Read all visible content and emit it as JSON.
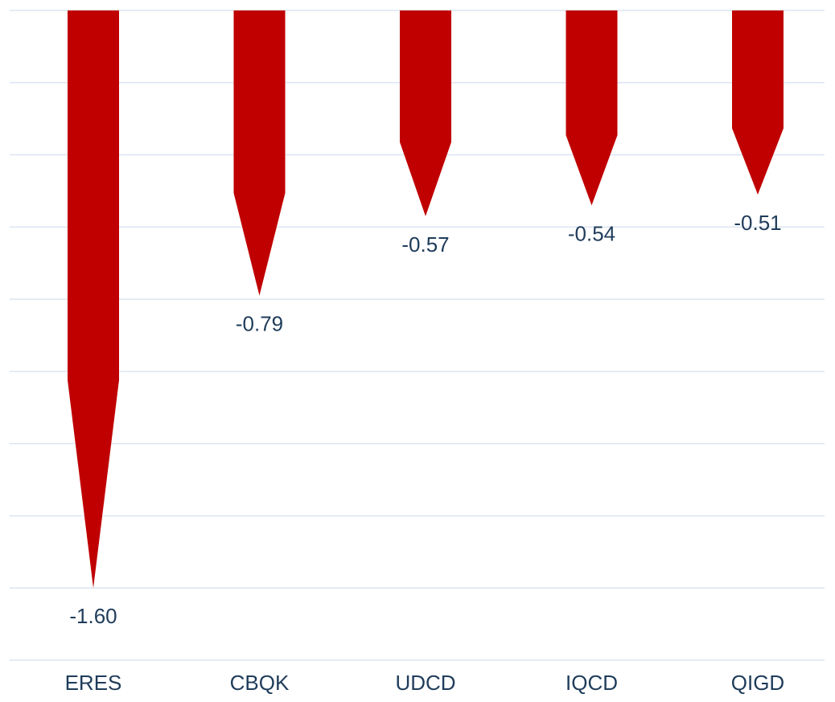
{
  "chart_data": {
    "type": "bar",
    "orientation": "vertical",
    "bar_style": "pointed-arrow",
    "categories": [
      "ERES",
      "CBQK",
      "UDCD",
      "IQCD",
      "QIGD"
    ],
    "values": [
      -1.6,
      -0.79,
      -0.57,
      -0.54,
      -0.51
    ],
    "value_labels": [
      "-1.60",
      "-0.79",
      "-0.57",
      "-0.54",
      "-0.51"
    ],
    "ylim": [
      -1.8,
      0
    ],
    "grid": true,
    "bar_color": "#c00000",
    "grid_color": "#dbe5f1",
    "label_color": "#1f3c5a"
  }
}
